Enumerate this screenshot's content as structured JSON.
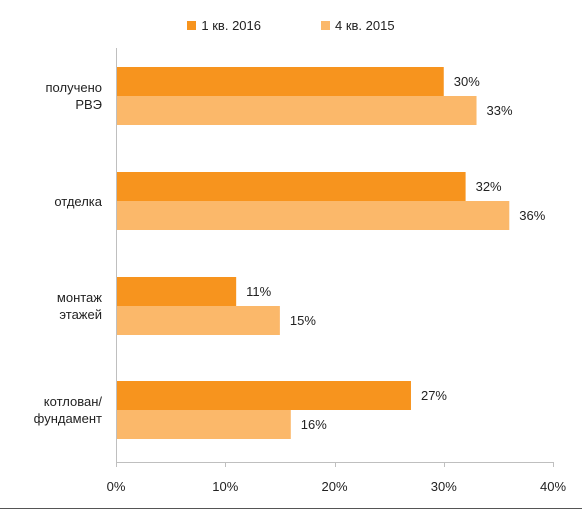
{
  "chart_data": {
    "type": "bar",
    "orientation": "horizontal",
    "categories": [
      "получено\nРВЭ",
      "отделка",
      "монтаж\nэтажей",
      "котлован/\nфундамент"
    ],
    "series": [
      {
        "name": "1 кв. 2016",
        "values": [
          30,
          32,
          11,
          27
        ],
        "labels": [
          "30%",
          "32%",
          "11%",
          "27%"
        ],
        "color": "#F7941E"
      },
      {
        "name": "4 кв. 2015",
        "values": [
          33,
          36,
          15,
          16
        ],
        "labels": [
          "33%",
          "36%",
          "15%",
          "16%"
        ],
        "color": "#FBB86A"
      }
    ],
    "xlim": [
      0,
      40
    ],
    "xticks": [
      "0%",
      "10%",
      "20%",
      "30%",
      "40%"
    ],
    "xtick_values": [
      0,
      10,
      20,
      30,
      40
    ],
    "grid": false,
    "legend_position": "top"
  }
}
